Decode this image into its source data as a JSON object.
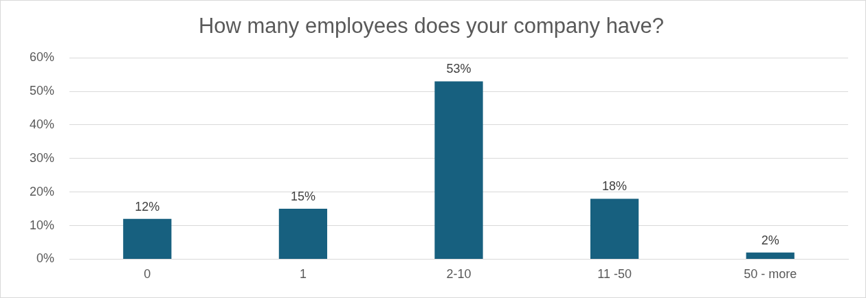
{
  "chart_data": {
    "type": "bar",
    "title": "How many employees does your company have?",
    "categories": [
      "0",
      "1",
      "2-10",
      "11 -50",
      "50 - more"
    ],
    "values": [
      12,
      15,
      53,
      18,
      2
    ],
    "value_labels": [
      "12%",
      "15%",
      "53%",
      "18%",
      "2%"
    ],
    "color": "#17607f",
    "ylim": [
      0,
      60
    ],
    "yticks": [
      {
        "value": 0,
        "label": "0%"
      },
      {
        "value": 10,
        "label": "10%"
      },
      {
        "value": 20,
        "label": "20%"
      },
      {
        "value": 30,
        "label": "30%"
      },
      {
        "value": 40,
        "label": "40%"
      },
      {
        "value": 50,
        "label": "50%"
      },
      {
        "value": 60,
        "label": "60%"
      }
    ],
    "grid": "y",
    "legend": false
  }
}
